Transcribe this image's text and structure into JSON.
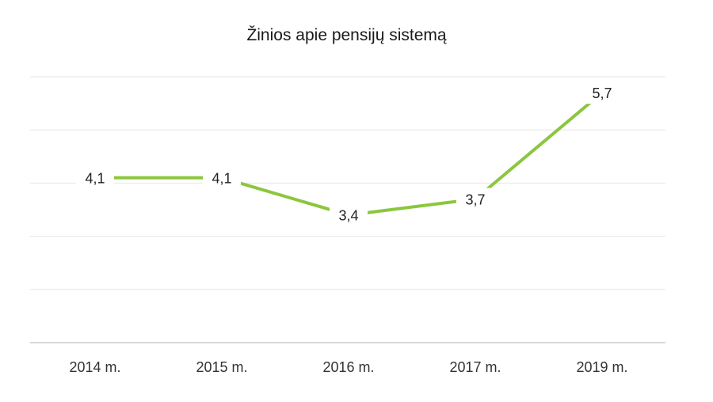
{
  "chart_data": {
    "type": "line",
    "title": "Žinios apie pensijų sistemą",
    "xlabel": "",
    "ylabel": "",
    "categories": [
      "2014 m.",
      "2015 m.",
      "2016 m.",
      "2017 m.",
      "2019 m."
    ],
    "series": [
      {
        "values": [
          4.1,
          4.1,
          3.4,
          3.7,
          5.7
        ],
        "labels": [
          "4,1",
          "4,1",
          "3,4",
          "3,7",
          "5,7"
        ]
      }
    ],
    "ylim": [
      1,
      6
    ],
    "grid": true,
    "legend": "none",
    "colors": {
      "line": "#8cc63f"
    }
  }
}
